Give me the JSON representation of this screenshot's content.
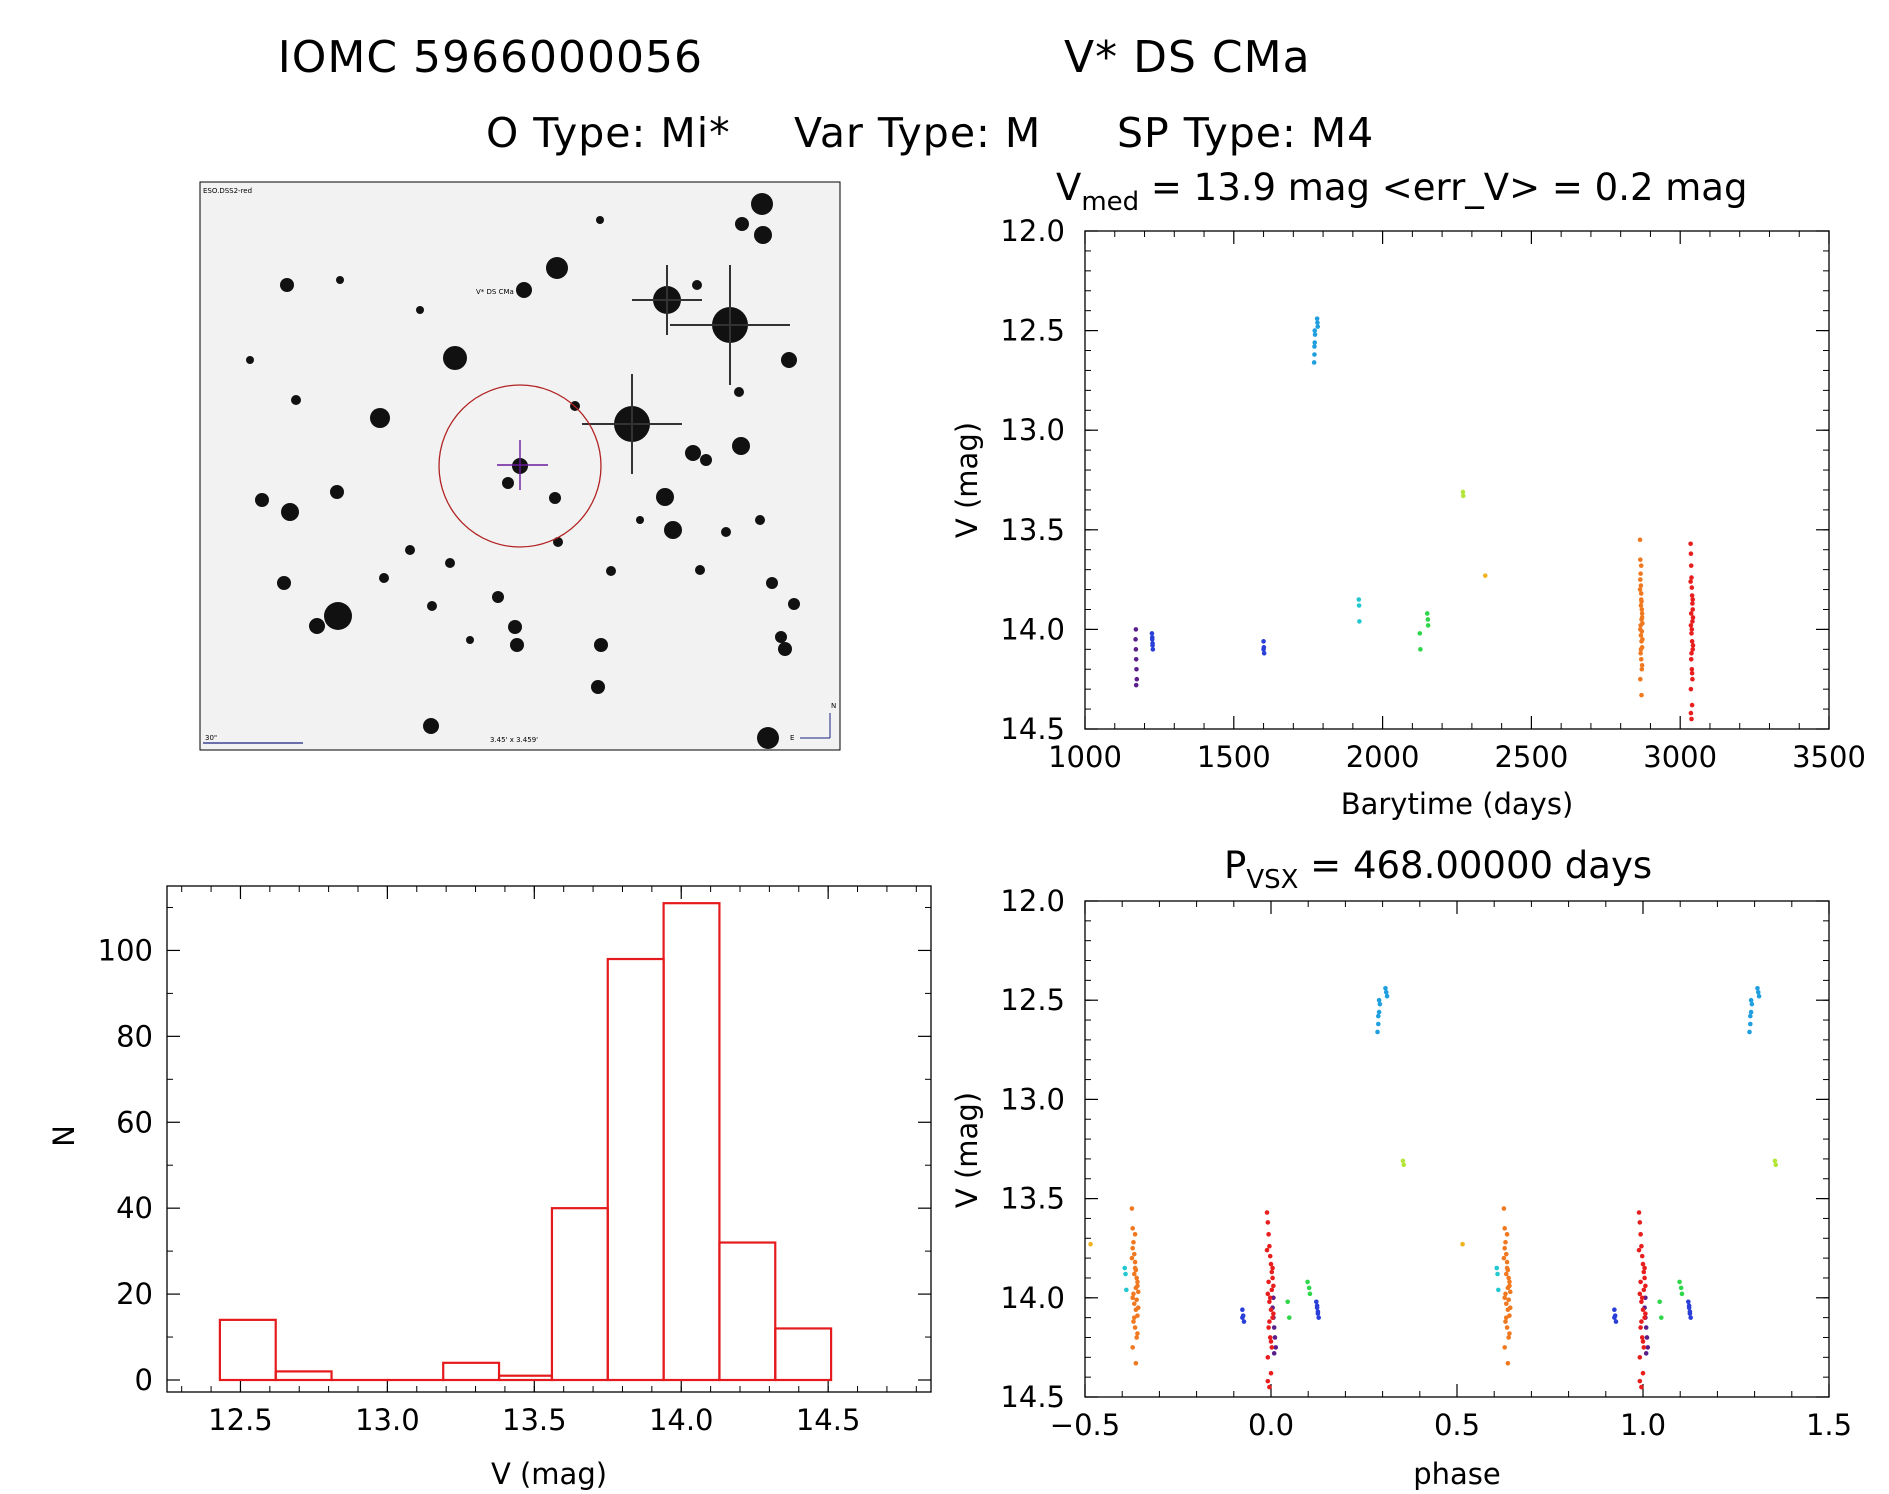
{
  "header": {
    "line1_left": "IOMC 5966000056",
    "line1_right": "V* DS CMa",
    "line2_otype": "O Type: Mi*",
    "line2_vartype": "Var Type: M",
    "line2_sptype": "SP Type: M4"
  },
  "sky_image": {
    "survey_label": "ESO.DSS2-red",
    "target_label": "V* DS CMa",
    "scale_label": "30\"",
    "fov_label": "3.45' x 3.459'",
    "compass_north": "N",
    "compass_east": "E",
    "circle_color": "#b22222",
    "crosshair_color": "#6a1b9a",
    "label_color": "#1a237e"
  },
  "colors": {
    "histogram": "#e41a1c",
    "seasons": [
      "#5b1f8c",
      "#2a3fd8",
      "#1f9fe0",
      "#22c7d0",
      "#2ed64a",
      "#b4e63a",
      "#f0b21e",
      "#f07820",
      "#e81e1e"
    ]
  },
  "chart_data": [
    {
      "id": "lightcurve",
      "type": "scatter",
      "title_prefix": "V",
      "title_sub": "med",
      "title_rest": " = 13.9 mag <err_V> = 0.2 mag",
      "xlabel": "Barytime (days)",
      "ylabel": "V (mag)",
      "xlim": [
        1000,
        3500
      ],
      "ylim": [
        14.5,
        12.0
      ],
      "y_inverted": true,
      "xticks": [
        1000,
        1500,
        2000,
        2500,
        3000,
        3500
      ],
      "yticks": [
        12.0,
        12.5,
        13.0,
        13.5,
        14.0,
        14.5
      ],
      "series": [
        {
          "name": "season1",
          "color_index": 0,
          "x": [
            1170,
            1171,
            1172,
            1173,
            1174,
            1172,
            1171
          ],
          "y": [
            14.05,
            14.1,
            14.15,
            14.2,
            14.25,
            14.28,
            14.0
          ]
        },
        {
          "name": "season2",
          "color_index": 1,
          "x": [
            1225,
            1226,
            1227,
            1228,
            1226,
            1227
          ],
          "y": [
            14.02,
            14.05,
            14.08,
            14.1,
            14.04,
            14.07
          ]
        },
        {
          "name": "season3",
          "color_index": 1,
          "x": [
            1600,
            1601,
            1602,
            1600
          ],
          "y": [
            14.06,
            14.09,
            14.12,
            14.1
          ]
        },
        {
          "name": "season4",
          "color_index": 2,
          "x": [
            1770,
            1771,
            1772,
            1773,
            1780,
            1781,
            1782,
            1772,
            1771
          ],
          "y": [
            12.66,
            12.62,
            12.56,
            12.52,
            12.44,
            12.46,
            12.48,
            12.5,
            12.58
          ]
        },
        {
          "name": "season5",
          "color_index": 3,
          "x": [
            1920,
            1921,
            1922
          ],
          "y": [
            13.85,
            13.88,
            13.96
          ]
        },
        {
          "name": "season6",
          "color_index": 4,
          "x": [
            2125,
            2127,
            2150,
            2152,
            2153
          ],
          "y": [
            14.02,
            14.1,
            13.92,
            13.95,
            13.98
          ]
        },
        {
          "name": "season7",
          "color_index": 5,
          "x": [
            2270,
            2271
          ],
          "y": [
            13.31,
            13.33
          ]
        },
        {
          "name": "season8",
          "color_index": 6,
          "x": [
            2345
          ],
          "y": [
            13.73
          ]
        },
        {
          "name": "season9",
          "color_index": 7,
          "x": [
            2865,
            2866,
            2867,
            2868,
            2869,
            2870,
            2871,
            2872,
            2873,
            2866,
            2868,
            2870,
            2872,
            2867,
            2869,
            2871,
            2866,
            2870,
            2868,
            2872,
            2867,
            2871,
            2869,
            2865,
            2873,
            2868,
            2870,
            2866,
            2872,
            2869
          ],
          "y": [
            13.55,
            13.65,
            13.72,
            13.78,
            13.82,
            13.86,
            13.9,
            13.94,
            13.97,
            14.0,
            14.03,
            14.06,
            14.09,
            14.12,
            14.15,
            14.2,
            14.25,
            14.33,
            13.88,
            13.92,
            13.98,
            14.01,
            13.85,
            13.8,
            14.05,
            14.1,
            13.95,
            13.75,
            14.18,
            13.68
          ]
        },
        {
          "name": "season10",
          "color_index": 8,
          "x": [
            3035,
            3036,
            3037,
            3038,
            3039,
            3040,
            3041,
            3042,
            3043,
            3036,
            3038,
            3040,
            3042,
            3037,
            3039,
            3041,
            3036,
            3040,
            3038,
            3042,
            3037,
            3041,
            3039,
            3035,
            3043,
            3038,
            3040,
            3036
          ],
          "y": [
            13.57,
            13.62,
            13.68,
            13.74,
            13.79,
            13.83,
            13.87,
            13.9,
            13.94,
            13.98,
            14.02,
            14.06,
            14.1,
            14.15,
            14.2,
            14.25,
            14.3,
            14.38,
            14.45,
            13.85,
            13.92,
            13.96,
            14.0,
            13.76,
            14.08,
            14.12,
            14.22,
            14.42
          ]
        }
      ]
    },
    {
      "id": "histogram",
      "type": "bar",
      "xlabel": "V (mag)",
      "ylabel": "N",
      "xlim": [
        12.25,
        14.85
      ],
      "ylim": [
        0,
        115
      ],
      "xticks": [
        12.5,
        13.0,
        13.5,
        14.0,
        14.5
      ],
      "yticks": [
        0,
        20,
        40,
        60,
        80,
        100
      ],
      "bin_edges": [
        12.43,
        12.62,
        12.81,
        13.0,
        13.19,
        13.38,
        13.56,
        13.75,
        13.94,
        14.13,
        14.32,
        14.51
      ],
      "values": [
        14,
        2,
        0,
        0,
        4,
        1,
        40,
        98,
        111,
        32,
        12
      ]
    },
    {
      "id": "phased",
      "type": "scatter",
      "title_prefix": "P",
      "title_sub": "VSX",
      "title_rest": " = 468.00000 days",
      "xlabel": "phase",
      "ylabel": "V (mag)",
      "xlim": [
        -0.5,
        1.5
      ],
      "ylim": [
        14.5,
        12.0
      ],
      "y_inverted": true,
      "xticks": [
        -0.5,
        0.0,
        0.5,
        1.0,
        1.5
      ],
      "xtick_labels": [
        "−0.5",
        "0.0",
        "0.5",
        "1.0",
        "1.5"
      ],
      "yticks": [
        12.0,
        12.5,
        13.0,
        13.5,
        14.0,
        14.5
      ],
      "period_days": 468.0,
      "epoch_days": 3040,
      "folded_from": "lightcurve"
    }
  ]
}
